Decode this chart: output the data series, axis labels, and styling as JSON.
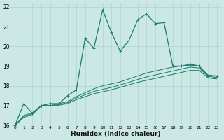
{
  "xlabel": "Humidex (Indice chaleur)",
  "background_color": "#cce8e4",
  "grid_color": "#aad4ce",
  "line_color": "#1a7a6e",
  "xlim": [
    -0.5,
    23.5
  ],
  "ylim": [
    16,
    22.2
  ],
  "yticks": [
    16,
    17,
    18,
    19,
    20,
    21,
    22
  ],
  "xticks": [
    0,
    1,
    2,
    3,
    4,
    5,
    6,
    7,
    8,
    9,
    10,
    11,
    12,
    13,
    14,
    15,
    16,
    17,
    18,
    19,
    20,
    21,
    22,
    23
  ],
  "series0": [
    16.0,
    17.1,
    16.6,
    17.0,
    17.1,
    17.1,
    17.5,
    17.8,
    20.4,
    19.9,
    21.85,
    20.7,
    19.75,
    20.3,
    21.35,
    21.65,
    21.15,
    21.2,
    19.0,
    19.0,
    19.1,
    19.0,
    18.5,
    18.5
  ],
  "series_smooth": [
    [
      16.0,
      16.5,
      16.65,
      17.0,
      17.0,
      17.1,
      17.2,
      17.45,
      17.65,
      17.85,
      18.0,
      18.1,
      18.2,
      18.35,
      18.5,
      18.65,
      18.75,
      18.85,
      18.95,
      19.0,
      19.05,
      19.0,
      18.55,
      18.5
    ],
    [
      16.0,
      16.45,
      16.6,
      17.0,
      17.0,
      17.05,
      17.15,
      17.38,
      17.55,
      17.72,
      17.82,
      17.92,
      18.05,
      18.18,
      18.32,
      18.45,
      18.55,
      18.65,
      18.75,
      18.85,
      18.95,
      18.9,
      18.48,
      18.42
    ],
    [
      16.0,
      16.4,
      16.55,
      17.0,
      16.98,
      17.02,
      17.1,
      17.3,
      17.45,
      17.6,
      17.7,
      17.8,
      17.92,
      18.05,
      18.18,
      18.28,
      18.38,
      18.48,
      18.58,
      18.68,
      18.78,
      18.78,
      18.4,
      18.35
    ]
  ]
}
